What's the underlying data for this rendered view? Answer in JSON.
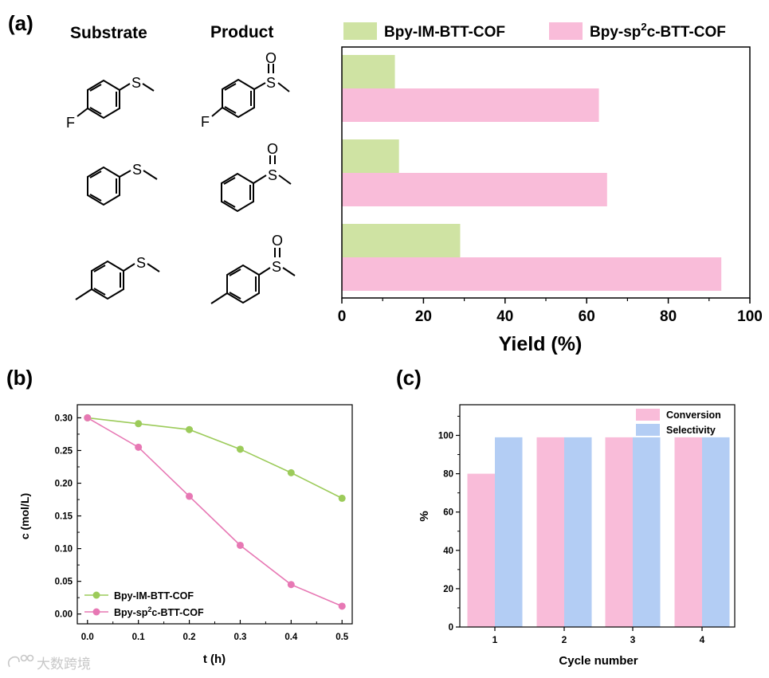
{
  "colors": {
    "green": "#cfe3a3",
    "pink": "#f9bcd9",
    "blue": "#b3cdf4",
    "line_green": "#9ccb5a",
    "line_pink": "#e778b4",
    "axis": "#000000"
  },
  "icons": [
    "4-fluorothioanisole-structure",
    "thioanisole-structure",
    "4-methylthioanisole-structure",
    "4-fluorophenyl-methyl-sulfoxide-structure",
    "methyl-phenyl-sulfoxide-structure",
    "methyl-p-tolyl-sulfoxide-structure",
    "watermark-logo"
  ],
  "panel_a": {
    "label": "(a)",
    "substrate_header": "Substrate",
    "product_header": "Product",
    "atom_F": "F",
    "atom_S": "S",
    "atom_O": "O"
  },
  "panel_b": {
    "label": "(b)"
  },
  "panel_c": {
    "label": "(c)"
  },
  "watermark": "大数跨境",
  "chart_data": [
    {
      "id": "a",
      "type": "bar",
      "orientation": "horizontal",
      "categories": [
        "4-fluorothioanisole",
        "thioanisole",
        "4-methylthioanisole"
      ],
      "series": [
        {
          "name": "Bpy-IM-BTT-COF",
          "name_parts": [
            "Bpy-IM-BTT-COF"
          ],
          "color_key": "green",
          "values": [
            13,
            14,
            29
          ]
        },
        {
          "name": "Bpy-sp2c-BTT-COF",
          "name_parts": [
            "Bpy-sp",
            "2",
            "c-BTT-COF"
          ],
          "color_key": "pink",
          "values": [
            63,
            65,
            93
          ]
        }
      ],
      "xlabel": "Yield (%)",
      "xlim": [
        0,
        100
      ],
      "xticks": [
        0,
        20,
        40,
        60,
        80,
        100
      ],
      "legend": "top"
    },
    {
      "id": "b",
      "type": "line",
      "x": [
        0.0,
        0.1,
        0.2,
        0.3,
        0.4,
        0.5
      ],
      "xtick_labels": [
        "0.0",
        "0.1",
        "0.2",
        "0.3",
        "0.4",
        "0.5"
      ],
      "series": [
        {
          "name": "Bpy-IM-BTT-COF",
          "name_parts": [
            "Bpy-IM-BTT-COF"
          ],
          "color_key": "line_green",
          "values": [
            0.3,
            0.291,
            0.282,
            0.252,
            0.216,
            0.177
          ]
        },
        {
          "name": "Bpy-sp2c-BTT-COF",
          "name_parts": [
            "Bpy-sp",
            "2",
            "c-BTT-COF"
          ],
          "color_key": "line_pink",
          "values": [
            0.3,
            0.255,
            0.18,
            0.105,
            0.045,
            0.012
          ]
        }
      ],
      "xlabel": "t (h)",
      "ylabel": "c (mol/L)",
      "xlim": [
        -0.02,
        0.52
      ],
      "ylim": [
        -0.015,
        0.32
      ],
      "yticks": [
        0.0,
        0.05,
        0.1,
        0.15,
        0.2,
        0.25,
        0.3
      ],
      "ytick_labels": [
        "0.00",
        "0.05",
        "0.10",
        "0.15",
        "0.20",
        "0.25",
        "0.30"
      ],
      "legend": "bottom-left"
    },
    {
      "id": "c",
      "type": "bar",
      "categories": [
        "1",
        "2",
        "3",
        "4"
      ],
      "series": [
        {
          "name": "Conversion",
          "name_parts": [
            "Conversion"
          ],
          "color_key": "pink",
          "values": [
            80,
            99,
            99,
            99
          ]
        },
        {
          "name": "Selectivity",
          "name_parts": [
            "Selectivity"
          ],
          "color_key": "blue",
          "values": [
            99,
            99,
            99,
            99
          ]
        }
      ],
      "xlabel": "Cycle number",
      "ylabel": "%",
      "ylim": [
        0,
        116
      ],
      "yticks": [
        0,
        20,
        40,
        60,
        80,
        100
      ],
      "legend": "top-right"
    }
  ]
}
